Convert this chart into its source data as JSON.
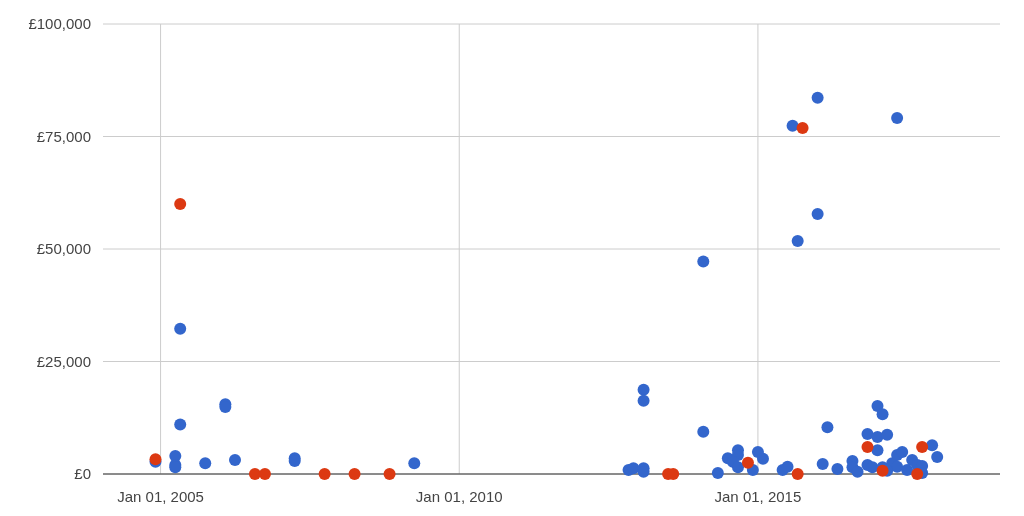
{
  "chart_data": {
    "type": "scatter",
    "marker": "circle",
    "grid": true,
    "xlim": [
      "2004-01-15",
      "2019-01-20"
    ],
    "xticks": [
      {
        "value": "2005-01-01",
        "label": "Jan 01, 2005"
      },
      {
        "value": "2010-01-01",
        "label": "Jan 01, 2010"
      },
      {
        "value": "2015-01-01",
        "label": "Jan 01, 2015"
      }
    ],
    "ylim": [
      0,
      100000
    ],
    "yticks": [
      {
        "value": 0,
        "label": "£0"
      },
      {
        "value": 25000,
        "label": "£25,000"
      },
      {
        "value": 50000,
        "label": "£50,000"
      },
      {
        "value": 75000,
        "label": "£75,000"
      },
      {
        "value": 100000,
        "label": "£100,000"
      }
    ],
    "series": [
      {
        "color": "#3366cc",
        "x": [
          "2004-12",
          "2005-04",
          "2005-04",
          "2005-04",
          "2005-05",
          "2005-05",
          "2005-10",
          "2006-02",
          "2006-02",
          "2006-04",
          "2007-04",
          "2007-04",
          "2009-04",
          "2012-11",
          "2012-12",
          "2013-02",
          "2013-02",
          "2013-02",
          "2013-02",
          "2014-02",
          "2014-02",
          "2014-05",
          "2014-07",
          "2014-09",
          "2014-09",
          "2014-08",
          "2014-09",
          "2014-12",
          "2015-01",
          "2015-02",
          "2015-06",
          "2015-07",
          "2015-09",
          "2016-03",
          "2016-02",
          "2016-01",
          "2015-08",
          "2017-05",
          "2016-01",
          "2017-01",
          "2017-02",
          "2016-11",
          "2017-01",
          "2017-03",
          "2017-01",
          "2017-12",
          "2018-01",
          "2016-05",
          "2016-08",
          "2016-08",
          "2016-09",
          "2016-11",
          "2016-12",
          "2017-02",
          "2017-04",
          "2017-05",
          "2017-06",
          "2017-05",
          "2017-08",
          "2017-07",
          "2017-09",
          "2017-10",
          "2017-10",
          "2017-03"
        ],
        "values": [
          2700,
          4000,
          2000,
          1500,
          32300,
          11000,
          2400,
          15500,
          14900,
          3100,
          3500,
          2900,
          2400,
          900,
          1300,
          18700,
          16300,
          1300,
          500,
          47200,
          9400,
          200,
          3500,
          5300,
          4200,
          2700,
          1500,
          900,
          4900,
          3400,
          900,
          1600,
          51800,
          10400,
          2200,
          83600,
          77400,
          79100,
          57800,
          15100,
          13300,
          8900,
          8200,
          8700,
          5300,
          6400,
          3800,
          1100,
          2900,
          1500,
          500,
          2000,
          1500,
          1500,
          2400,
          4200,
          4900,
          1600,
          3100,
          900,
          2000,
          1800,
          200,
          700
        ]
      },
      {
        "color": "#dc3912",
        "x": [
          "2004-12",
          "2005-05",
          "2006-08",
          "2006-10",
          "2007-10",
          "2008-04",
          "2008-11",
          "2013-07",
          "2013-08",
          "2014-11",
          "2015-09",
          "2015-10",
          "2016-11",
          "2017-10",
          "2017-02",
          "2017-09"
        ],
        "values": [
          3300,
          60000,
          0,
          0,
          0,
          0,
          0,
          0,
          0,
          2500,
          0,
          76900,
          6000,
          6000,
          700,
          0
        ]
      }
    ]
  }
}
